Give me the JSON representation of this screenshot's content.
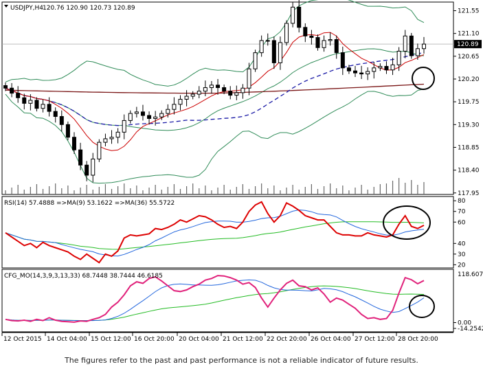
{
  "chart_data": [
    {
      "type": "candlestick",
      "symbol": "USDJPY,H4",
      "ohlc_header": "120.76 120.90 120.73 120.89",
      "current_price_label": "120.89",
      "current_price": 120.89,
      "ylim": [
        117.92,
        121.72
      ],
      "yticks": [
        "121.55",
        "121.10",
        "120.65",
        "120.20",
        "119.75",
        "119.30",
        "118.85",
        "118.40",
        "117.95"
      ],
      "closes": [
        120.02,
        119.92,
        119.83,
        119.72,
        119.78,
        119.62,
        119.7,
        119.56,
        119.46,
        119.3,
        119.05,
        118.8,
        118.5,
        118.3,
        118.62,
        118.95,
        119.02,
        119.05,
        119.15,
        119.38,
        119.52,
        119.55,
        119.48,
        119.42,
        119.45,
        119.52,
        119.6,
        119.7,
        119.8,
        119.86,
        119.9,
        119.96,
        120.03,
        120.08,
        120.03,
        119.96,
        119.88,
        119.93,
        120.02,
        120.4,
        120.72,
        120.96,
        120.96,
        120.52,
        120.92,
        121.3,
        121.62,
        121.22,
        121.05,
        121.02,
        120.82,
        120.96,
        120.98,
        120.72,
        120.42,
        120.36,
        120.32,
        120.3,
        120.35,
        120.42,
        120.45,
        120.38,
        120.48,
        120.75,
        121.05,
        120.66,
        120.8,
        120.89
      ],
      "ma_fast": {
        "color": "#cc0000",
        "style": "solid"
      },
      "ma_mid": {
        "color": "#1a1aa6",
        "style": "dashed"
      },
      "ma_slow": {
        "color": "#7a1515",
        "style": "solid"
      },
      "bands": {
        "color": "#2e8b57"
      },
      "annotation": "circle"
    },
    {
      "type": "line",
      "header": "RSI(14) 57.4888  =>MA(9) 53.1622  =>MA(36) 55.5722",
      "ylim": [
        17,
        84
      ],
      "yticks": [
        "80",
        "70",
        "60",
        "40",
        "30",
        "20"
      ],
      "series": [
        {
          "color": "#dd0000",
          "role": "rsi"
        },
        {
          "color": "#2266dd",
          "role": "ma9"
        },
        {
          "color": "#22bb22",
          "role": "ma36"
        }
      ],
      "rsi": [
        50,
        46,
        42,
        38,
        40,
        36,
        41,
        38,
        36,
        34,
        32,
        28,
        25,
        30,
        26,
        22,
        30,
        28,
        33,
        45,
        48,
        47,
        48,
        49,
        54,
        53,
        55,
        58,
        62,
        60,
        63,
        66,
        65,
        62,
        58,
        55,
        56,
        54,
        60,
        70,
        76,
        79,
        68,
        60,
        66,
        78,
        75,
        71,
        66,
        64,
        62,
        62,
        56,
        50,
        48,
        48,
        47,
        47,
        50,
        48,
        47,
        46,
        48,
        58,
        66,
        56,
        54,
        57
      ]
    },
    {
      "type": "line",
      "header": "CFG_MO(14,3,9,3,13,33) 68.7448 38.7444 46.6185",
      "yticks_top": "118.6073",
      "yticks_bottom": [
        "0.00",
        "-14.2542"
      ],
      "ylim": [
        -14.2542,
        118.6073
      ],
      "series": [
        {
          "color": "#e0207a",
          "role": "mo"
        },
        {
          "color": "#2266dd",
          "role": "signal1"
        },
        {
          "color": "#22bb22",
          "role": "signal2"
        }
      ],
      "mo": [
        8,
        5,
        4,
        6,
        3,
        8,
        5,
        12,
        6,
        3,
        2,
        1,
        4,
        3,
        8,
        12,
        20,
        38,
        50,
        68,
        90,
        100,
        96,
        108,
        112,
        102,
        90,
        78,
        76,
        80,
        88,
        94,
        104,
        108,
        115,
        114,
        110,
        104,
        94,
        98,
        86,
        60,
        38,
        60,
        80,
        96,
        104,
        90,
        88,
        80,
        85,
        70,
        50,
        60,
        55,
        45,
        35,
        20,
        10,
        12,
        8,
        10,
        30,
        72,
        110,
        105,
        95,
        103
      ]
    }
  ],
  "x_labels": [
    "12 Oct 2015",
    "14 Oct 04:00",
    "15 Oct 12:00",
    "16 Oct 20:00",
    "20 Oct 04:00",
    "21 Oct 12:00",
    "22 Oct 20:00",
    "26 Oct 04:00",
    "27 Oct 12:00",
    "28 Oct 20:00"
  ],
  "disclaimer": "The figures refer to the past and past performance is not a reliable indicator of future results."
}
